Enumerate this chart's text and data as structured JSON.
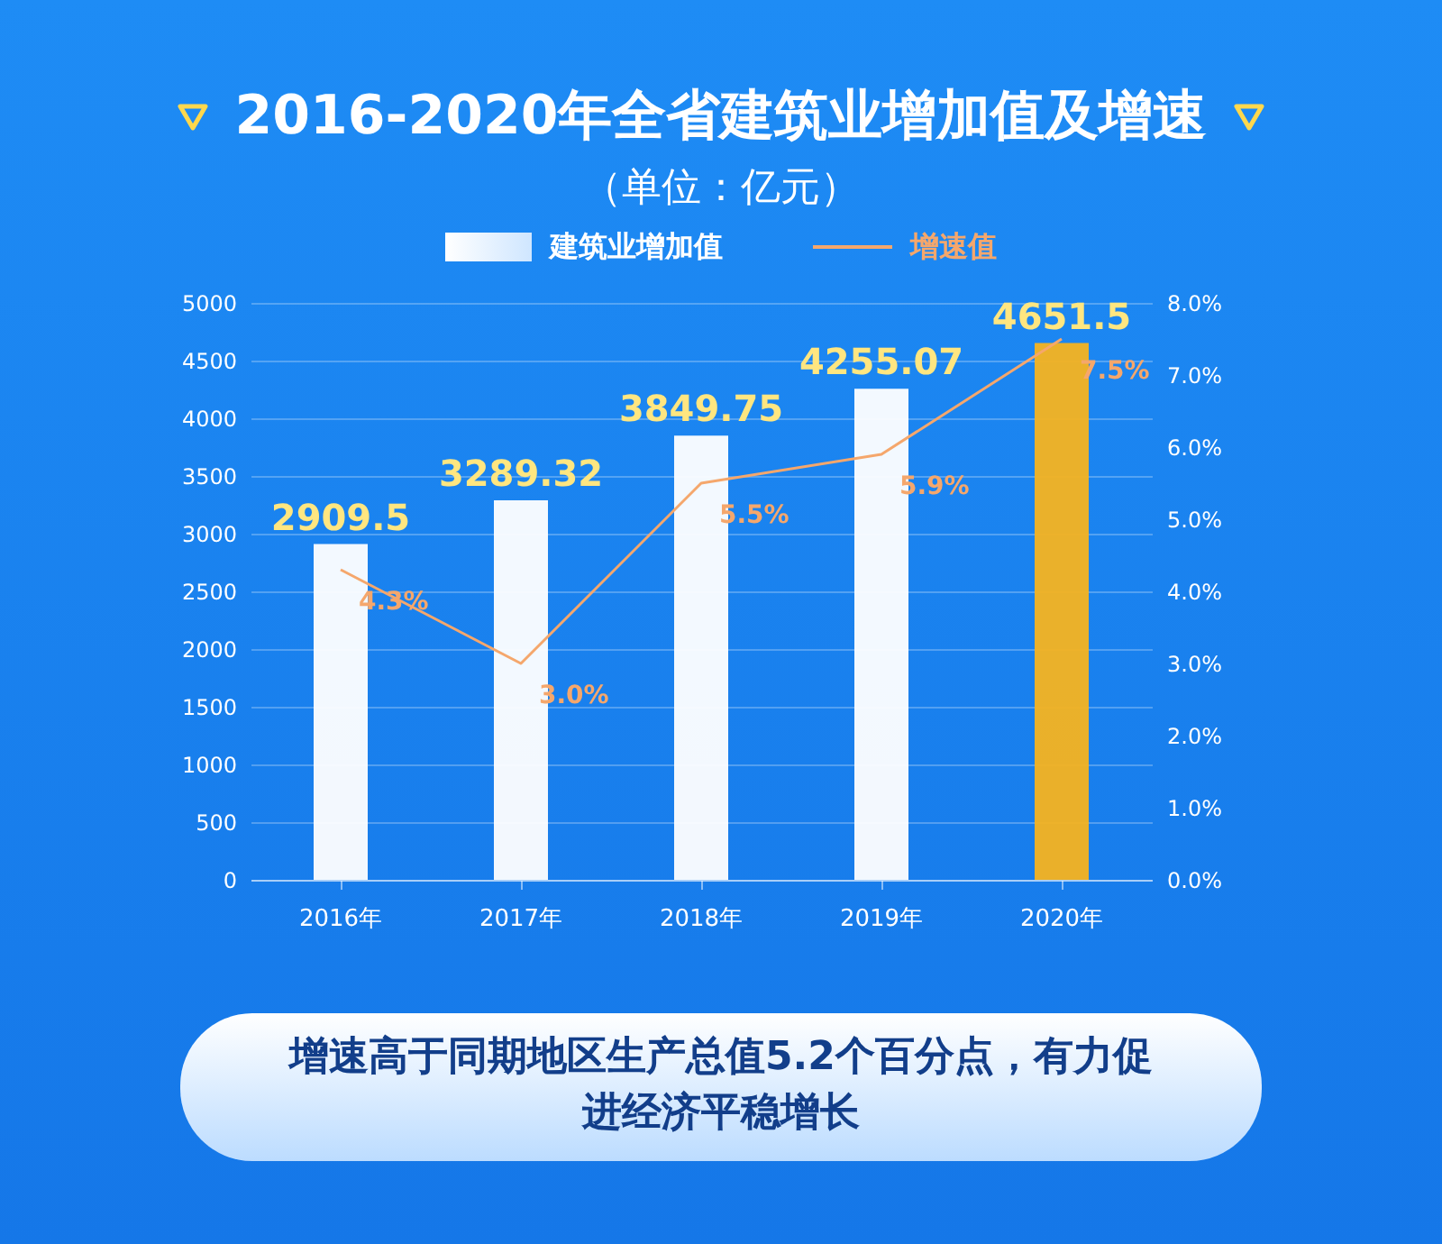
{
  "chart_data": {
    "type": "bar",
    "title": "2016-2020年全省建筑业增加值及增速",
    "subtitle": "（单位：亿元）",
    "categories": [
      "2016年",
      "2017年",
      "2018年",
      "2019年",
      "2020年"
    ],
    "series": [
      {
        "name": "建筑业增加值",
        "color": "#ffffff",
        "colors": [
          "#ffffff",
          "#ffffff",
          "#ffffff",
          "#ffffff",
          "#f5b320"
        ],
        "values": [
          2909.5,
          3289.32,
          3849.75,
          4255.07,
          4651.5
        ],
        "value_labels": [
          "2909.5",
          "3289.32",
          "3849.75",
          "4255.07",
          "4651.5"
        ]
      },
      {
        "name": "增速值",
        "type": "line",
        "axis": "y2",
        "color": "#f5a76c",
        "values": [
          4.3,
          3.0,
          5.5,
          5.9,
          7.5
        ],
        "value_labels": [
          "4.3%",
          "3.0%",
          "5.5%",
          "5.9%",
          "7.5%"
        ]
      }
    ],
    "ylim": [
      0,
      5000
    ],
    "yticks": [
      0,
      500,
      1000,
      1500,
      2000,
      2500,
      3000,
      3500,
      4000,
      4500,
      5000
    ],
    "y2lim": [
      0,
      8
    ],
    "y2ticks": [
      {
        "value": 0,
        "label": "0.0%"
      },
      {
        "value": 1,
        "label": "1.0%"
      },
      {
        "value": 2,
        "label": "2.0%"
      },
      {
        "value": 3,
        "label": "3.0%"
      },
      {
        "value": 4,
        "label": "4.0%"
      },
      {
        "value": 5,
        "label": "5.0%"
      },
      {
        "value": 6,
        "label": "6.0%"
      },
      {
        "value": 7,
        "label": "7.0%"
      },
      {
        "value": 8,
        "label": "8.0%"
      }
    ],
    "grid": "y",
    "legend": "top",
    "marker": "none",
    "line_style": "solid",
    "annotations": [
      "增速高于同期地区生产总值5.2个百分点，有力促进经济平稳增长"
    ]
  }
}
